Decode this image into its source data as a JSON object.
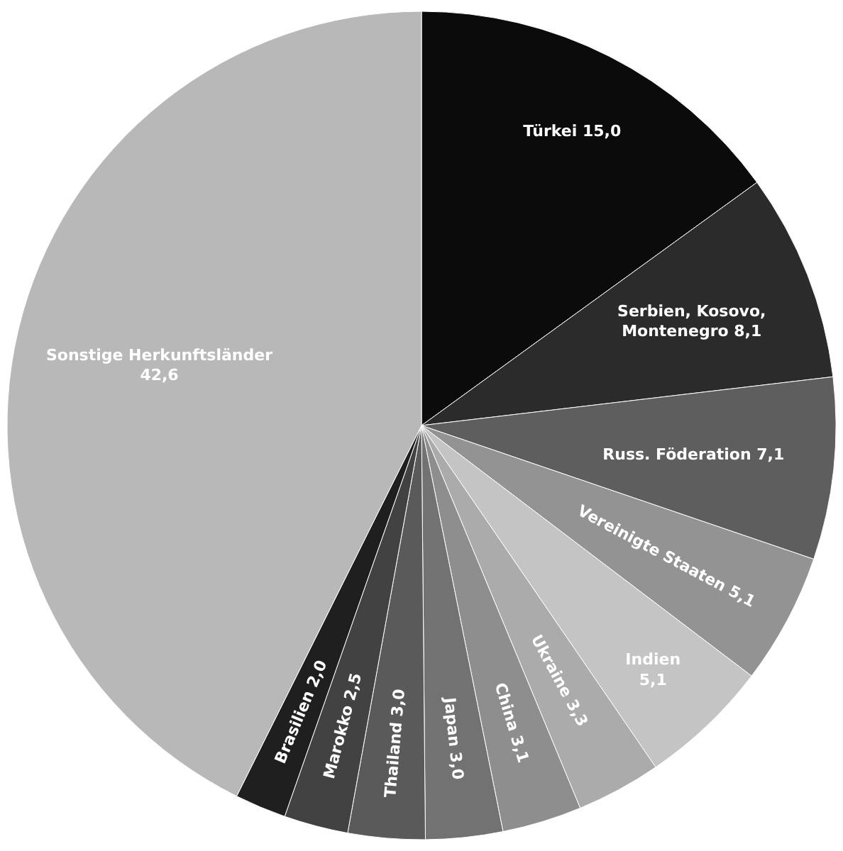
{
  "chart_data": {
    "type": "pie",
    "categories": [
      "Türkei",
      "Serbien, Kosovo, Montenegro",
      "Russ. Föderation",
      "Vereinigte Staaten",
      "Indien",
      "Ukraine",
      "China",
      "Japan",
      "Thailand",
      "Marokko",
      "Brasilien",
      "Sonstige Herkunftsländer"
    ],
    "values": [
      15.0,
      8.1,
      7.1,
      5.1,
      5.1,
      3.3,
      3.1,
      3.0,
      3.0,
      2.5,
      2.0,
      42.6
    ],
    "value_labels": [
      "15,0",
      "8,1",
      "7,1",
      "5,1",
      "5,1",
      "3,3",
      "3,1",
      "3,0",
      "3,0",
      "2,5",
      "2,0",
      "42,6"
    ],
    "colors": [
      "#0b0b0b",
      "#2b2b2b",
      "#5e5e5e",
      "#939393",
      "#c4c4c4",
      "#ababab",
      "#8e8e8e",
      "#727272",
      "#5a5a5a",
      "#424242",
      "#1f1f1f",
      "#b8b8b8"
    ]
  }
}
